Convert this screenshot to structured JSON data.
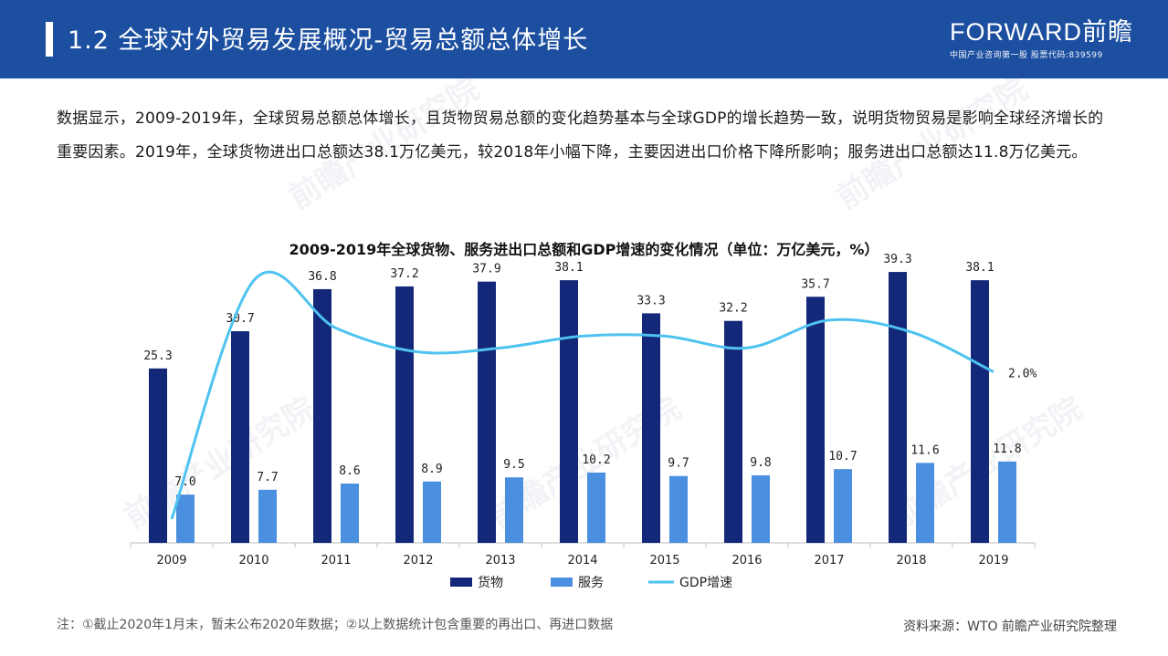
{
  "header": {
    "title": "1.2 全球对外贸易发展概况-贸易总额总体增长",
    "logo_text": "FORWARD前瞻",
    "logo_tagline": "中国产业咨询第一股 股票代码:839599"
  },
  "intro": "数据显示，2009-2019年，全球贸易总额总体增长，且货物贸易总额的变化趋势基本与全球GDP的增长趋势一致，说明货物贸易是影响全球经济增长的重要因素。2019年，全球货物进出口总额达38.1万亿美元，较2018年小幅下降，主要因进出口价格下降所影响；服务进出口总额达11.8万亿美元。",
  "watermark": "前瞻产业研究院",
  "chart_data": {
    "type": "bar",
    "title": "2009-2019年全球货物、服务进出口总额和GDP增速的变化情况（单位：万亿美元，%）",
    "categories": [
      "2009",
      "2010",
      "2011",
      "2012",
      "2013",
      "2014",
      "2015",
      "2016",
      "2017",
      "2018",
      "2019"
    ],
    "series": [
      {
        "name": "货物",
        "type": "bar",
        "color": "#14287a",
        "values": [
          25.3,
          30.7,
          36.8,
          37.2,
          37.9,
          38.1,
          33.3,
          32.2,
          35.7,
          39.3,
          38.1
        ],
        "labels": [
          "25.3",
          "30.7",
          "36.8",
          "37.2",
          "37.9",
          "38.1",
          "33.3",
          "32.2",
          "35.7",
          "39.3",
          "38.1"
        ]
      },
      {
        "name": "服务",
        "type": "bar",
        "color": "#4a8fe0",
        "values": [
          7.0,
          7.7,
          8.6,
          8.9,
          9.5,
          10.2,
          9.7,
          9.8,
          10.7,
          11.6,
          11.8
        ],
        "labels": [
          "7.0",
          "7.7",
          "8.6",
          "8.9",
          "9.5",
          "10.2",
          "9.7",
          "9.8",
          "10.7",
          "11.6",
          "11.8"
        ]
      },
      {
        "name": "GDP增速",
        "type": "line",
        "color": "#4ec3f0",
        "values": [
          -1.7,
          4.3,
          3.1,
          2.5,
          2.6,
          2.9,
          2.9,
          2.6,
          3.3,
          3.0,
          2.0
        ],
        "end_label": "2.0%"
      }
    ],
    "bar_ylim": [
      0,
      45
    ],
    "line_ylim": [
      -2.3,
      5.5
    ],
    "legend_position": "bottom",
    "grid": false
  },
  "footer": {
    "note": "注：①截止2020年1月末，暂未公布2020年数据；②以上数据统计包含重要的再出口、再进口数据",
    "source": "资料来源：WTO 前瞻产业研究院整理"
  }
}
